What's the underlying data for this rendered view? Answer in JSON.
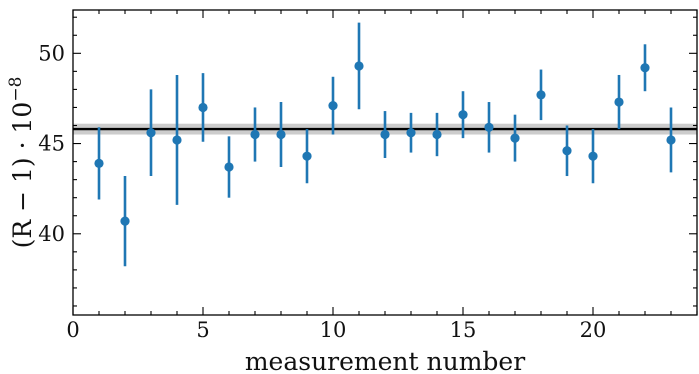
{
  "chart_data": {
    "type": "scatter",
    "xlabel": "measurement number",
    "ylabel_main": "(R − 1) · 10",
    "ylabel_exponent": "−8",
    "xlim": [
      0,
      24
    ],
    "ylim": [
      35.5,
      52.4
    ],
    "x_ticks": [
      0,
      5,
      10,
      15,
      20
    ],
    "x_tick_labels": [
      "0",
      "5",
      "10",
      "15",
      "20"
    ],
    "y_ticks": [
      40,
      45,
      50
    ],
    "y_tick_labels": [
      "40",
      "45",
      "50"
    ],
    "x_minor_step": 1,
    "y_minor_step": 1,
    "grid": false,
    "reference_line": {
      "y": 45.8,
      "band": [
        45.5,
        46.1
      ]
    },
    "colors": {
      "points": "#1f77b4",
      "reference_line": "#000000",
      "band": "#cccccc"
    },
    "points": [
      {
        "x": 1,
        "y": 43.9,
        "err": 2.0
      },
      {
        "x": 2,
        "y": 40.7,
        "err": 2.5
      },
      {
        "x": 3,
        "y": 45.6,
        "err": 2.4
      },
      {
        "x": 4,
        "y": 45.2,
        "err": 3.6
      },
      {
        "x": 5,
        "y": 47.0,
        "err": 1.9
      },
      {
        "x": 6,
        "y": 43.7,
        "err": 1.7
      },
      {
        "x": 7,
        "y": 45.5,
        "err": 1.5
      },
      {
        "x": 8,
        "y": 45.5,
        "err": 1.8
      },
      {
        "x": 9,
        "y": 44.3,
        "err": 1.5
      },
      {
        "x": 10,
        "y": 47.1,
        "err": 1.6
      },
      {
        "x": 11,
        "y": 49.3,
        "err": 2.4
      },
      {
        "x": 12,
        "y": 45.5,
        "err": 1.3
      },
      {
        "x": 13,
        "y": 45.6,
        "err": 1.1
      },
      {
        "x": 14,
        "y": 45.5,
        "err": 1.2
      },
      {
        "x": 15,
        "y": 46.6,
        "err": 1.3
      },
      {
        "x": 16,
        "y": 45.9,
        "err": 1.4
      },
      {
        "x": 17,
        "y": 45.3,
        "err": 1.3
      },
      {
        "x": 18,
        "y": 47.7,
        "err": 1.4
      },
      {
        "x": 19,
        "y": 44.6,
        "err": 1.4
      },
      {
        "x": 20,
        "y": 44.3,
        "err": 1.5
      },
      {
        "x": 21,
        "y": 47.3,
        "err": 1.5
      },
      {
        "x": 22,
        "y": 49.2,
        "err": 1.3
      },
      {
        "x": 23,
        "y": 45.2,
        "err": 1.8
      }
    ]
  }
}
